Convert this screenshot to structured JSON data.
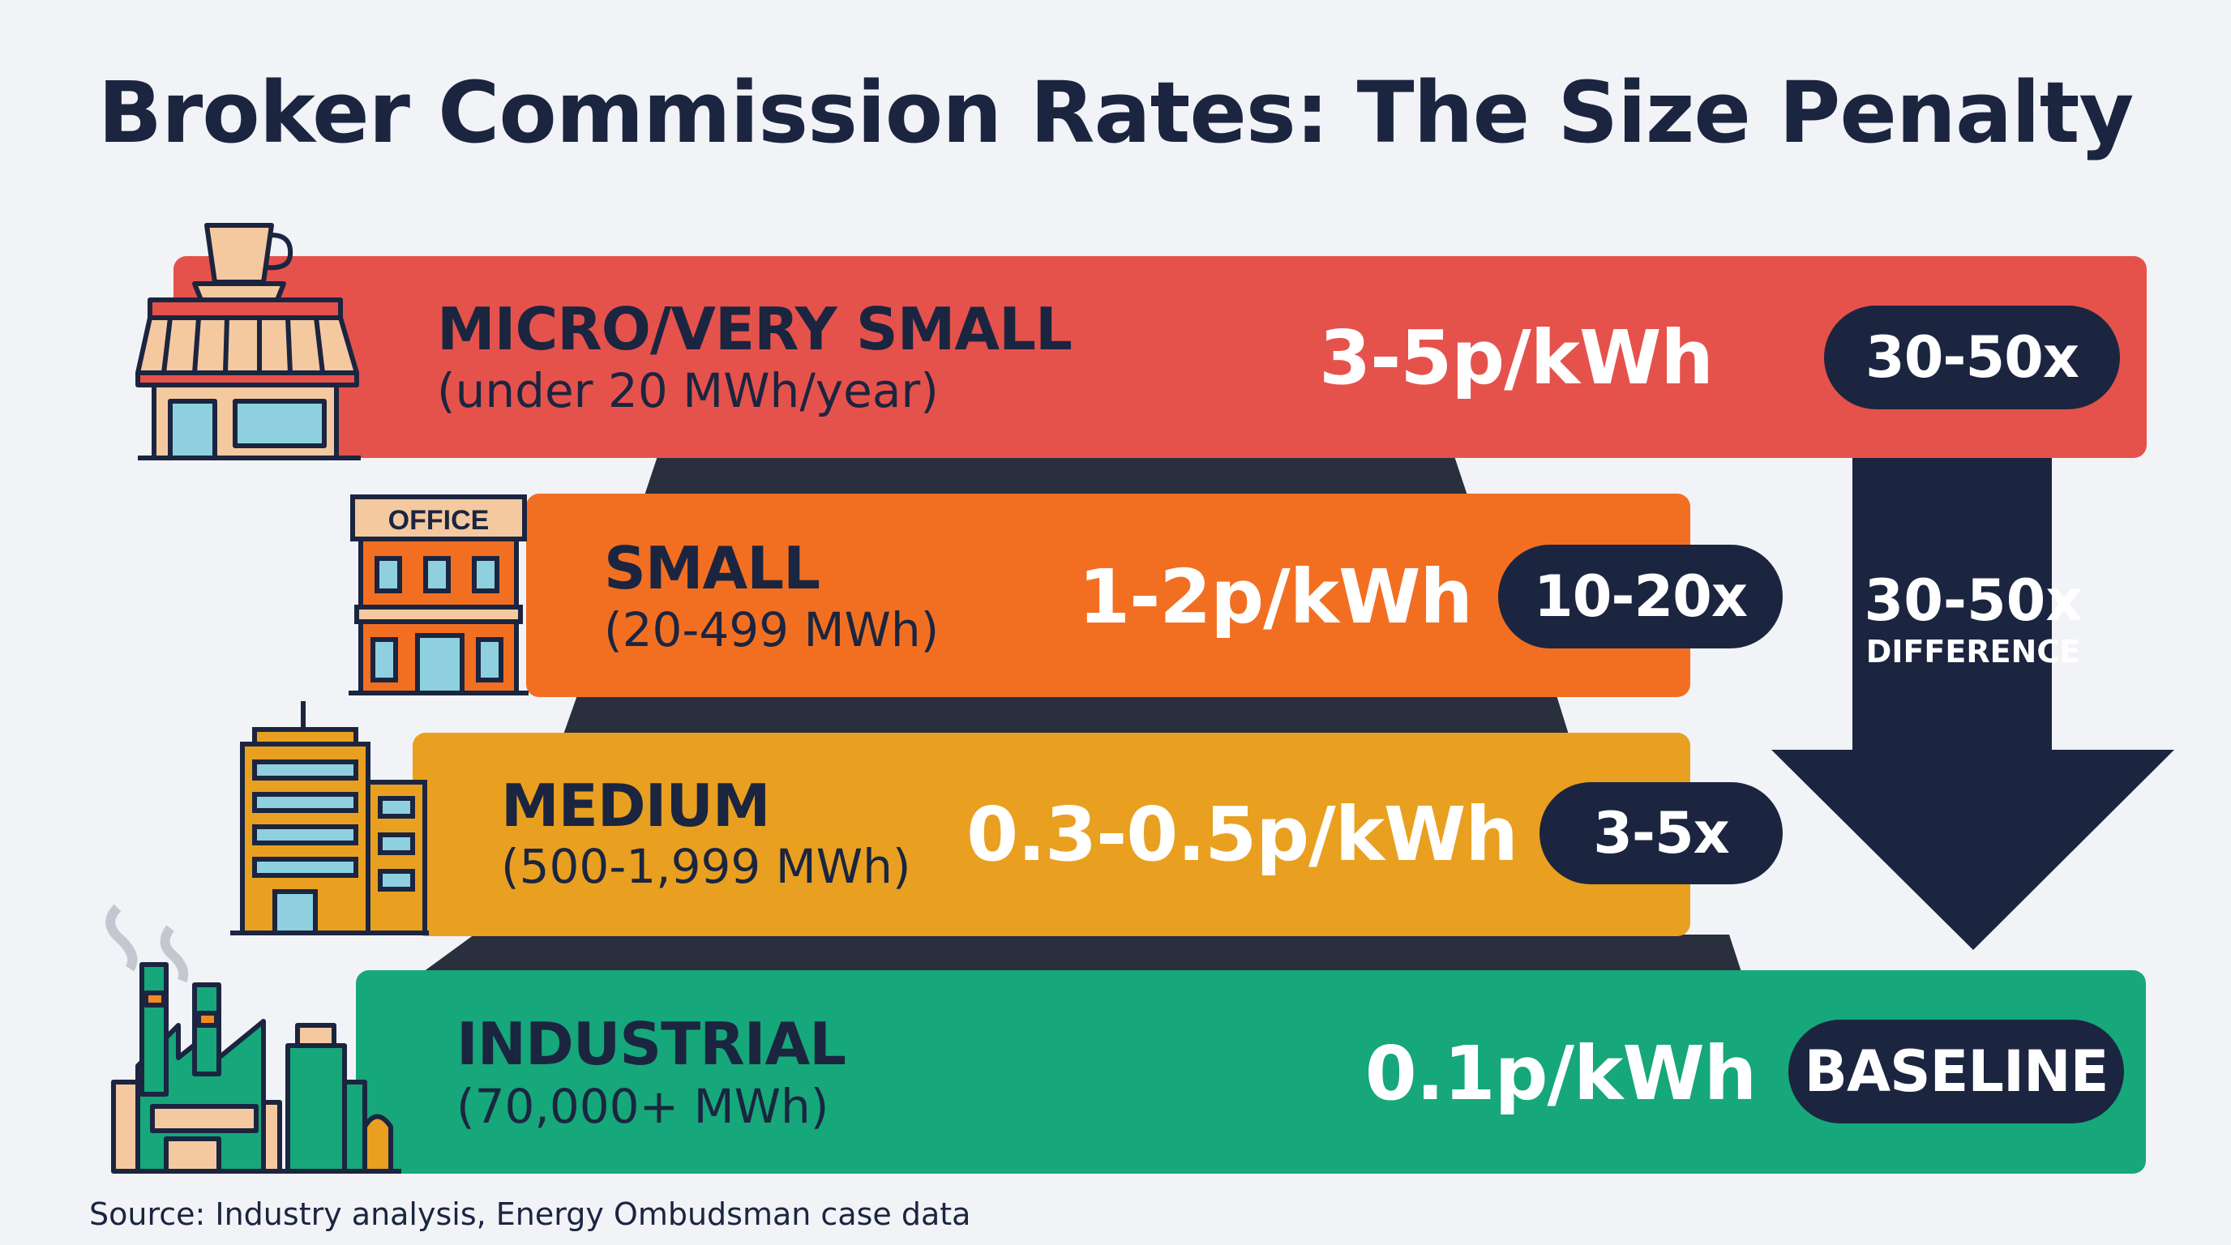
{
  "title": "Broker Commission Rates: The Size Penalty",
  "colors": {
    "micro": "#e5524c",
    "small": "#f26f22",
    "medium": "#e9a020",
    "industrial": "#16a77a",
    "dark": "#1b2540",
    "background": "#f1f3f7"
  },
  "tiers": [
    {
      "name": "MICRO/VERY SMALL",
      "range": "(under 20 MWh/year)",
      "rate": "3-5p/kWh",
      "multiplier": "30-50x",
      "icon": "coffee-shop-icon"
    },
    {
      "name": "SMALL",
      "range": "(20-499 MWh)",
      "rate": "1-2p/kWh",
      "multiplier": "10-20x",
      "icon": "office-building-icon",
      "icon_sign": "OFFICE"
    },
    {
      "name": "MEDIUM",
      "range": "(500-1,999 MWh)",
      "rate": "0.3-0.5p/kWh",
      "multiplier": "3-5x",
      "icon": "office-tower-icon"
    },
    {
      "name": "INDUSTRIAL",
      "range": "(70,000+ MWh)",
      "rate": "0.1p/kWh",
      "multiplier": "BASELINE",
      "icon": "factory-icon"
    }
  ],
  "arrow": {
    "value": "30-50x",
    "label": "DIFFERENCE"
  },
  "source": "Source: Industry analysis, Energy Ombudsman case data"
}
